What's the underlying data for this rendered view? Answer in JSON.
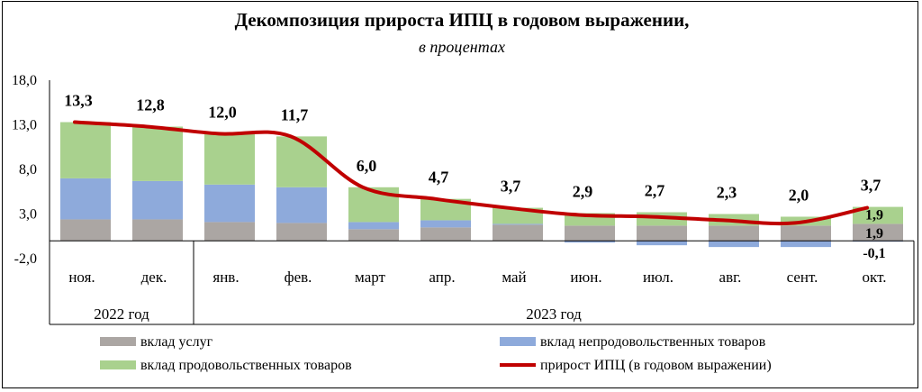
{
  "title": "Декомпозиция прироста ИПЦ в годовом выражении,",
  "subtitle": "в процентах",
  "chart_data": {
    "type": "bar",
    "stacked": true,
    "categories": [
      "ноя.",
      "дек.",
      "янв.",
      "фев.",
      "март",
      "апр.",
      "май",
      "июн.",
      "июл.",
      "авг.",
      "сент.",
      "окт."
    ],
    "year_groups": [
      {
        "label": "2022 год",
        "from": 0,
        "to": 1
      },
      {
        "label": "2023 год",
        "from": 2,
        "to": 11
      }
    ],
    "yticks": [
      "18,0",
      "13,0",
      "8,0",
      "3,0",
      "-2,0"
    ],
    "ylim": [
      -2,
      18
    ],
    "series": [
      {
        "name": "вклад услуг",
        "color": "#aba6a3",
        "kind": "bar",
        "values": [
          2.4,
          2.4,
          2.1,
          2.0,
          1.3,
          1.5,
          1.8,
          1.7,
          1.7,
          1.7,
          1.7,
          1.9
        ]
      },
      {
        "name": "вклад непродовольственных товаров",
        "color": "#8eaadb",
        "kind": "bar",
        "values": [
          4.6,
          4.3,
          4.2,
          4.0,
          0.8,
          0.8,
          0.1,
          -0.2,
          -0.5,
          -0.7,
          -0.7,
          -0.1
        ]
      },
      {
        "name": "вклад продовольственных товаров",
        "color": "#a9d18e",
        "kind": "bar",
        "values": [
          6.3,
          6.1,
          5.7,
          5.7,
          3.9,
          2.4,
          1.8,
          1.4,
          1.5,
          1.3,
          1.0,
          1.9
        ]
      },
      {
        "name": "прирост ИПЦ (в годовом выражении)",
        "color": "#c00000",
        "kind": "line",
        "values": [
          13.3,
          12.8,
          12.0,
          11.7,
          6.0,
          4.7,
          3.7,
          2.9,
          2.7,
          2.3,
          2.0,
          3.7
        ]
      }
    ],
    "data_labels": [
      "13,3",
      "12,8",
      "12,0",
      "11,7",
      "6,0",
      "4,7",
      "3,7",
      "2,9",
      "2,7",
      "2,3",
      "2,0",
      "3,7"
    ],
    "last_point_components": [
      "1,9",
      "1,9",
      "-0,1"
    ]
  }
}
